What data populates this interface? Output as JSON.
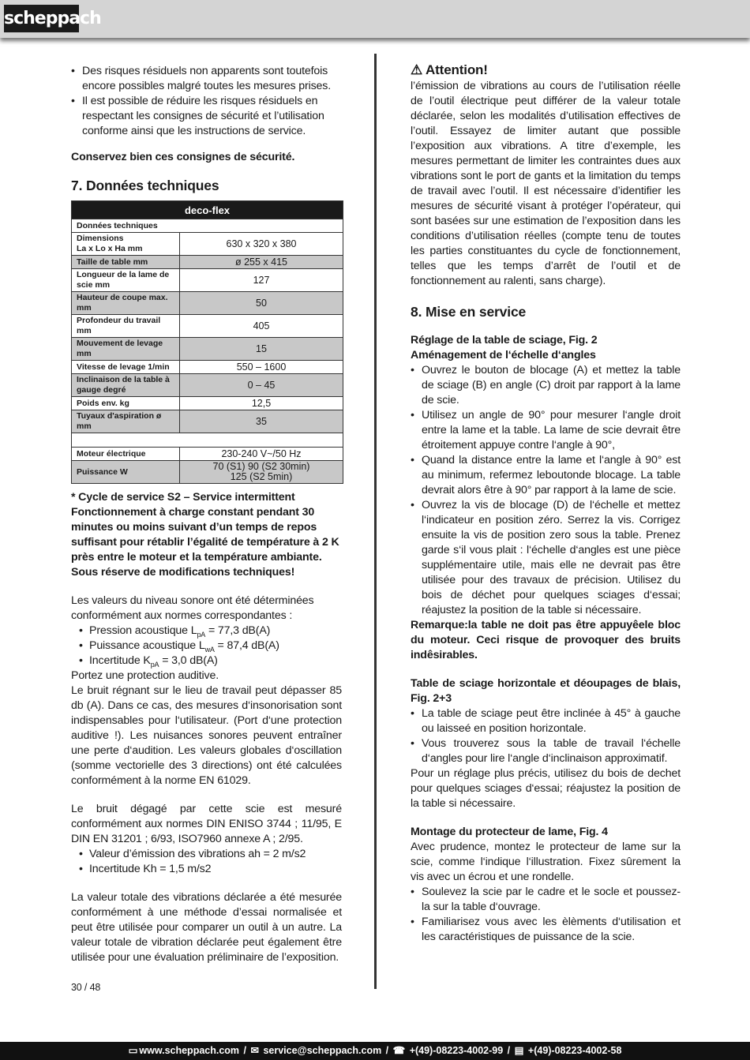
{
  "header": {
    "logo": "scheppach"
  },
  "left": {
    "bullets1": [
      "Des risques résiduels non apparents sont toutefois encore possibles malgré toutes les mesures prises.",
      "Il est possible de réduire les risques résiduels en respectant les consignes de sécurité et l’utilisation conforme ainsi que les instructions de service."
    ],
    "keep": "Conservez bien ces consignes de sécurité.",
    "section7": "7. Données techniques",
    "table": {
      "title": "deco-flex",
      "subtitle": "Données techniques",
      "rows": [
        [
          "Dimensions\nLa x Lo x Ha mm",
          "630 x 320 x 380"
        ],
        [
          "Taille de table mm",
          "ø 255 x 415"
        ],
        [
          "Longueur de la lame de scie mm",
          "127"
        ],
        [
          "Hauteur de coupe max. mm",
          "50"
        ],
        [
          "Profondeur du travail mm",
          "405"
        ],
        [
          "Mouvement de levage mm",
          "15"
        ],
        [
          "Vitesse de levage 1/min",
          "550 – 1600"
        ],
        [
          "Inclinaison de la table à gauge degré",
          "0 – 45"
        ],
        [
          "Poids env. kg",
          "12,5"
        ],
        [
          "Tuyaux d'aspiration ø mm",
          "35"
        ]
      ],
      "rows2": [
        [
          "Moteur électrique",
          "230-240 V~/50 Hz"
        ],
        [
          "Puissance W",
          "70 (S1) 90 (S2 30min)\n125 (S2 5min)"
        ]
      ]
    },
    "cycle": "* Cycle de service S2 – Service intermittent Fonctionnement à charge constant pendant 30 minutes ou moins suivant d’un temps de repos suffisant pour rétablir l’égalité de température à 2 K près entre le moteur et la température ambiante.",
    "reserve": "Sous réserve de modifications techniques!",
    "noise_intro": "Les valeurs du niveau sonore ont été déterminées conformément aux normes correspondantes :",
    "noise": [
      {
        "pre": "Pression acoustique L",
        "sub": "pA",
        "post": " = 77,3 dB(A)"
      },
      {
        "pre": "Puissance acoustique L",
        "sub": "wA",
        "post": " = 87,4 dB(A)"
      },
      {
        "pre": "Incertitude K",
        "sub": "pA",
        "post": " = 3,0 dB(A)"
      }
    ],
    "p1": "Portez une protection auditive.",
    "p2": "Le bruit régnant sur le lieu de travail peut dépasser 85 db (A). Dans ce cas, des mesures d‘insonorisation sont indispensables pour l‘utilisateur. (Port d‘une protection auditive !). Les nuisances sonores peuvent entraîner une perte d‘audition. Les valeurs globales d‘oscillation (somme vectorielle des 3 directions) ont été calculées conformément à la norme EN 61029.",
    "p3": "Le bruit dégagé par cette scie est mesuré conformément aux normes DIN ENISO 3744 ; 11/95, E DIN EN 31201 ; 6/93, ISO7960 annexe A ; 2/95.",
    "vib": [
      "Valeur d’émission des vibrations ah = 2 m/s2",
      "Incertitude Kh = 1,5 m/s2"
    ],
    "p4": "La valeur totale des vibrations déclarée a été mesurée conformément à une méthode d’essai normalisée et peut être utilisée pour comparer un outil à un autre. La valeur totale de vibration déclarée peut également être utilisée pour une évaluation préliminaire de l’exposition."
  },
  "right": {
    "attention": "Attention!",
    "att_text": "l’émission de vibrations au cours de l’utilisation réelle de l’outil électrique peut différer de la valeur totale déclarée, selon les modalités d’utilisation effectives de l’outil. Essayez de limiter autant que possible l’exposition aux vibrations. A titre d’exemple, les mesures permettant de limiter les contraintes dues aux vibrations sont le port de gants et la limitation du temps de travail avec l’outil. Il est nécessaire d’identifier les mesures de sécurité visant à protéger l’opérateur, qui sont basées sur une estimation de l’exposition dans les conditions d’utilisation réelles (compte tenu de toutes les parties constituantes du cycle de fonctionnement, telles que les temps d’arrêt de l’outil et de fonctionnement au ralenti, sans charge).",
    "section8": "8.   Mise en service",
    "h1": "Réglage de la table de sciage, Fig. 2",
    "h2": "Aménagement de l‘échelle d‘angles",
    "bullets1": [
      "Ouvrez le bouton de blocage (A) et mettez la table de sciage (B) en angle (C) droit par rapport à la lame de scie.",
      "Utilisez un angle de 90° pour mesurer l‘angle droit entre la lame et la table. La lame de scie devrait être étroitement appuye contre l‘angle à 90°,",
      "Quand la distance entre la lame et l‘angle à 90° est au minimum, refermez leboutonde blocage. La table devrait alors être à 90° par rapport à la lame de scie.",
      "Ouvrez la vis de blocage (D) de l‘échelle et mettez l‘indicateur en position zéro. Serrez la vis. Corrigez ensuite la vis de position zero sous la table. Prenez garde s‘il vous plait : l‘échelle d‘angles est une pièce supplémentaire utile, mais elle ne devrait pas être utilisée pour des travaux de précision. Utilisez du bois de déchet pour quelques sciages d‘essai; réajustez la position de la table si nécessaire."
    ],
    "remark": "Remarque:la table ne doit pas être appuyêele bloc du moteur. Ceci risque de provoquer des bruits indêsirables.",
    "h3": "Table de sciage horizontale et déoupages de blais, Fig. 2+3",
    "bullets2": [
      "La table de sciage peut être inclinée à 45° à gauche ou laisseé en position horizontale.",
      "Vous trouverez sous la table de travail l‘échelle d‘angles pour lire l‘angle d‘inclinaison approximatif."
    ],
    "p1": "Pour un réglage plus précis, utilisez du bois de dechet pour quelques sciages d‘essai; réajustez la position de la table si nécessaire.",
    "h4": "Montage du protecteur de lame, Fig. 4",
    "p2": "Avec prudence, montez le protecteur de lame sur la scie, comme l‘indique l‘illustration. Fixez sûrement la vis avec un écrou et une rondelle.",
    "bullets3": [
      "Soulevez la scie par le cadre et le socle et poussez-la sur la table d‘ouvrage.",
      "Familiarisez vous avec les èlèments d‘utilisation et les caractéristiques de puissance de la scie."
    ]
  },
  "page": "30 / 48",
  "footer": {
    "web": "www.scheppach.com",
    "email": "service@scheppach.com",
    "phone": "+(49)-08223-4002-99",
    "fax": "+(49)-08223-4002-58",
    "sep": " / "
  }
}
